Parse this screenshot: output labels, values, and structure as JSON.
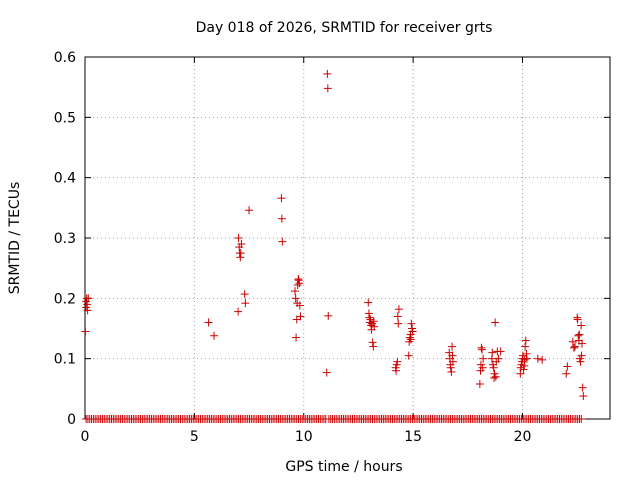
{
  "chart_data": {
    "type": "scatter",
    "title": "Day 018 of 2026, SRMTID for receiver grts",
    "xlabel": "GPS time / hours",
    "ylabel": "SRMTID / TECUs",
    "xlim": [
      0,
      24
    ],
    "ylim": [
      0,
      0.6
    ],
    "xticks": [
      0,
      5,
      10,
      15,
      20
    ],
    "yticks": [
      0,
      0.1,
      0.2,
      0.3,
      0.4,
      0.5,
      0.6
    ],
    "ytick_labels": [
      "0",
      "0.1",
      "0.2",
      "0.3",
      "0.4",
      "0.5",
      "0.6"
    ],
    "grid": true,
    "marker": "+",
    "series": [
      {
        "name": "SRMTID",
        "color": "#cc0000",
        "points": [
          [
            0.02,
            0.145
          ],
          [
            0.05,
            0.185
          ],
          [
            0.05,
            0.195
          ],
          [
            0.08,
            0.2
          ],
          [
            0.1,
            0.19
          ],
          [
            0.12,
            0.18
          ],
          [
            0.15,
            0.2
          ],
          [
            5.65,
            0.16
          ],
          [
            5.9,
            0.138
          ],
          [
            7.0,
            0.178
          ],
          [
            7.02,
            0.3
          ],
          [
            7.05,
            0.285
          ],
          [
            7.07,
            0.275
          ],
          [
            7.1,
            0.268
          ],
          [
            7.12,
            0.275
          ],
          [
            7.15,
            0.29
          ],
          [
            7.3,
            0.207
          ],
          [
            7.33,
            0.192
          ],
          [
            7.5,
            0.346
          ],
          [
            8.98,
            0.366
          ],
          [
            9.0,
            0.332
          ],
          [
            9.02,
            0.294
          ],
          [
            9.6,
            0.212
          ],
          [
            9.63,
            0.2
          ],
          [
            9.65,
            0.135
          ],
          [
            9.68,
            0.165
          ],
          [
            9.7,
            0.192
          ],
          [
            9.72,
            0.222
          ],
          [
            9.75,
            0.232
          ],
          [
            9.77,
            0.23
          ],
          [
            9.8,
            0.225
          ],
          [
            9.82,
            0.188
          ],
          [
            9.85,
            0.17
          ],
          [
            11.05,
            0.077
          ],
          [
            11.08,
            0.572
          ],
          [
            11.1,
            0.548
          ],
          [
            11.12,
            0.171
          ],
          [
            12.95,
            0.193
          ],
          [
            12.98,
            0.175
          ],
          [
            13.0,
            0.168
          ],
          [
            13.02,
            0.16
          ],
          [
            13.05,
            0.165
          ],
          [
            13.08,
            0.155
          ],
          [
            13.1,
            0.148
          ],
          [
            13.12,
            0.158
          ],
          [
            13.15,
            0.127
          ],
          [
            13.18,
            0.12
          ],
          [
            13.2,
            0.162
          ],
          [
            13.22,
            0.153
          ],
          [
            14.2,
            0.085
          ],
          [
            14.22,
            0.08
          ],
          [
            14.25,
            0.09
          ],
          [
            14.28,
            0.095
          ],
          [
            14.3,
            0.17
          ],
          [
            14.32,
            0.158
          ],
          [
            14.35,
            0.182
          ],
          [
            14.8,
            0.105
          ],
          [
            14.82,
            0.128
          ],
          [
            14.85,
            0.135
          ],
          [
            14.88,
            0.14
          ],
          [
            14.9,
            0.132
          ],
          [
            14.92,
            0.158
          ],
          [
            14.95,
            0.15
          ],
          [
            14.98,
            0.145
          ],
          [
            16.65,
            0.11
          ],
          [
            16.68,
            0.1
          ],
          [
            16.7,
            0.09
          ],
          [
            16.72,
            0.085
          ],
          [
            16.75,
            0.078
          ],
          [
            16.78,
            0.12
          ],
          [
            16.8,
            0.105
          ],
          [
            16.82,
            0.095
          ],
          [
            18.05,
            0.058
          ],
          [
            18.08,
            0.08
          ],
          [
            18.1,
            0.09
          ],
          [
            18.12,
            0.118
          ],
          [
            18.15,
            0.115
          ],
          [
            18.18,
            0.085
          ],
          [
            18.2,
            0.1
          ],
          [
            18.6,
            0.1
          ],
          [
            18.62,
            0.11
          ],
          [
            18.65,
            0.09
          ],
          [
            18.68,
            0.085
          ],
          [
            18.7,
            0.068
          ],
          [
            18.72,
            0.075
          ],
          [
            18.75,
            0.16
          ],
          [
            18.78,
            0.07
          ],
          [
            18.8,
            0.095
          ],
          [
            18.85,
            0.112
          ],
          [
            18.9,
            0.1
          ],
          [
            19.0,
            0.112
          ],
          [
            19.9,
            0.075
          ],
          [
            19.92,
            0.085
          ],
          [
            19.95,
            0.09
          ],
          [
            19.98,
            0.095
          ],
          [
            20.0,
            0.1
          ],
          [
            20.02,
            0.105
          ],
          [
            20.05,
            0.082
          ],
          [
            20.08,
            0.088
          ],
          [
            20.1,
            0.098
          ],
          [
            20.12,
            0.12
          ],
          [
            20.15,
            0.13
          ],
          [
            20.18,
            0.108
          ],
          [
            20.2,
            0.1
          ],
          [
            20.7,
            0.1
          ],
          [
            20.9,
            0.098
          ],
          [
            22.0,
            0.075
          ],
          [
            22.05,
            0.087
          ],
          [
            22.3,
            0.128
          ],
          [
            22.35,
            0.118
          ],
          [
            22.4,
            0.12
          ],
          [
            22.5,
            0.168
          ],
          [
            22.52,
            0.165
          ],
          [
            22.55,
            0.138
          ],
          [
            22.58,
            0.13
          ],
          [
            22.6,
            0.14
          ],
          [
            22.62,
            0.1
          ],
          [
            22.65,
            0.095
          ],
          [
            22.68,
            0.155
          ],
          [
            22.7,
            0.105
          ],
          [
            22.72,
            0.125
          ],
          [
            22.75,
            0.052
          ],
          [
            22.78,
            0.038
          ]
        ],
        "baseline": {
          "y": 0,
          "x_ranges": [
            [
              0.05,
              11.02
            ],
            [
              11.15,
              22.7
            ]
          ],
          "step": 0.083
        }
      }
    ]
  }
}
